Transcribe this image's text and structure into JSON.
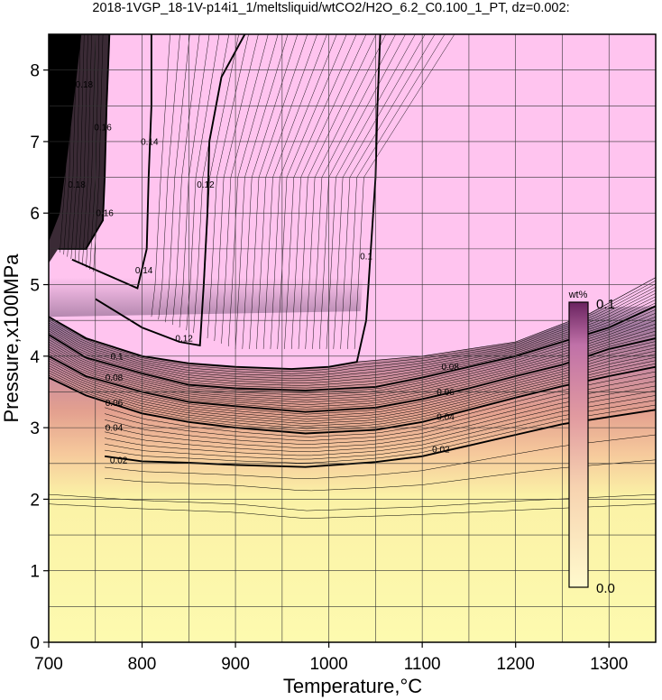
{
  "chart_data": {
    "type": "heatmap",
    "title": "2018-1VGP_18-1V-p14i1_1/meltsliquid/wtCO2/H2O_6.2_C0.100_1_PT, dz=0.002:",
    "xlabel": "Temperature,°C",
    "ylabel": "Pressure,x100MPa",
    "xlim": [
      700,
      1350
    ],
    "ylim": [
      0,
      8.5
    ],
    "x_ticks": [
      "700",
      "800",
      "900",
      "1000",
      "1100",
      "1200",
      "1300"
    ],
    "y_ticks": [
      "0",
      "1",
      "2",
      "3",
      "4",
      "5",
      "6",
      "7",
      "8"
    ],
    "grid": true,
    "colorbar": {
      "unit": "wt%",
      "min_label": "0.0",
      "max_label": "0.1",
      "placement": "right-inside",
      "colors": [
        "#fffacd",
        "#f4b9a4",
        "#cc7a8a",
        "#ffc4ef",
        "#000000"
      ]
    },
    "region_colors": {
      "upper": "#ffc4ef",
      "lower": "#fdfaaf",
      "left": "#000000"
    },
    "major_contours": [
      {
        "level": 0.02,
        "label": "0.02",
        "points": [
          [
            760,
            2.6
          ],
          [
            800,
            2.53
          ],
          [
            850,
            2.51
          ],
          [
            900,
            2.48
          ],
          [
            975,
            2.45
          ],
          [
            1050,
            2.52
          ],
          [
            1100,
            2.6
          ],
          [
            1150,
            2.75
          ],
          [
            1200,
            2.9
          ],
          [
            1250,
            3.05
          ],
          [
            1300,
            3.15
          ],
          [
            1350,
            3.25
          ]
        ]
      },
      {
        "level": 0.04,
        "label": "0.04",
        "points": [
          [
            700,
            3.7
          ],
          [
            740,
            3.45
          ],
          [
            800,
            3.2
          ],
          [
            850,
            3.08
          ],
          [
            900,
            3.0
          ],
          [
            975,
            2.92
          ],
          [
            1050,
            2.97
          ],
          [
            1100,
            3.08
          ],
          [
            1150,
            3.25
          ],
          [
            1200,
            3.42
          ],
          [
            1250,
            3.58
          ],
          [
            1300,
            3.72
          ],
          [
            1350,
            3.85
          ]
        ]
      },
      {
        "level": 0.06,
        "label": "0.06",
        "points": [
          [
            700,
            4.0
          ],
          [
            740,
            3.72
          ],
          [
            800,
            3.5
          ],
          [
            850,
            3.36
          ],
          [
            900,
            3.3
          ],
          [
            975,
            3.22
          ],
          [
            1050,
            3.28
          ],
          [
            1100,
            3.4
          ],
          [
            1150,
            3.55
          ],
          [
            1200,
            3.72
          ],
          [
            1250,
            3.88
          ],
          [
            1300,
            4.1
          ],
          [
            1350,
            4.25
          ]
        ]
      },
      {
        "level": 0.08,
        "label": "0.08",
        "points": [
          [
            700,
            4.3
          ],
          [
            740,
            3.98
          ],
          [
            800,
            3.76
          ],
          [
            850,
            3.6
          ],
          [
            900,
            3.55
          ],
          [
            975,
            3.52
          ],
          [
            1050,
            3.57
          ],
          [
            1100,
            3.7
          ],
          [
            1150,
            3.85
          ],
          [
            1200,
            4.0
          ],
          [
            1250,
            4.2
          ],
          [
            1300,
            4.4
          ],
          [
            1350,
            4.7
          ]
        ]
      },
      {
        "level": 0.1,
        "label": "0.1",
        "points": [
          [
            700,
            4.55
          ],
          [
            740,
            4.25
          ],
          [
            800,
            4.0
          ],
          [
            850,
            3.9
          ],
          [
            900,
            3.85
          ],
          [
            960,
            3.82
          ],
          [
            1000,
            3.85
          ],
          [
            1030,
            3.92
          ],
          [
            1040,
            4.5
          ],
          [
            1045,
            5.5
          ],
          [
            1050,
            6.5
          ],
          [
            1052,
            7.5
          ],
          [
            1055,
            8.5
          ]
        ]
      },
      {
        "level": 0.12,
        "label": "0.12",
        "points": [
          [
            750,
            4.8
          ],
          [
            800,
            4.4
          ],
          [
            840,
            4.2
          ],
          [
            862,
            4.15
          ],
          [
            866,
            5.0
          ],
          [
            870,
            6.0
          ],
          [
            872,
            7.0
          ],
          [
            885,
            7.9
          ],
          [
            910,
            8.5
          ]
        ]
      },
      {
        "level": 0.14,
        "label": "0.14",
        "points": [
          [
            725,
            5.35
          ],
          [
            760,
            5.15
          ],
          [
            795,
            4.95
          ],
          [
            805,
            5.5
          ],
          [
            807,
            6.5
          ],
          [
            810,
            7.5
          ],
          [
            810,
            8.5
          ]
        ]
      },
      {
        "level": 0.16,
        "label": "0.16",
        "points": [
          [
            710,
            5.5
          ],
          [
            740,
            5.5
          ],
          [
            758,
            5.9
          ],
          [
            760,
            6.5
          ],
          [
            762,
            7.5
          ],
          [
            765,
            8.5
          ]
        ]
      }
    ],
    "contour_labels": [
      {
        "text": "0.02",
        "x": 775,
        "y": 2.55
      },
      {
        "text": "0.04",
        "x": 770,
        "y": 3.0
      },
      {
        "text": "0.06",
        "x": 770,
        "y": 3.35
      },
      {
        "text": "0.08",
        "x": 770,
        "y": 3.7
      },
      {
        "text": "0.1",
        "x": 773,
        "y": 4.0
      },
      {
        "text": "0.12",
        "x": 845,
        "y": 4.25
      },
      {
        "text": "0.14",
        "x": 802,
        "y": 5.2
      },
      {
        "text": "0.16",
        "x": 760,
        "y": 6.0
      },
      {
        "text": "0.14",
        "x": 808,
        "y": 7.0
      },
      {
        "text": "0.12",
        "x": 868,
        "y": 6.4
      },
      {
        "text": "0.16",
        "x": 758,
        "y": 7.2
      },
      {
        "text": "0.1",
        "x": 1040,
        "y": 5.4
      },
      {
        "text": "0.08",
        "x": 1130,
        "y": 3.85
      },
      {
        "text": "0.06",
        "x": 1125,
        "y": 3.5
      },
      {
        "text": "0.04",
        "x": 1125,
        "y": 3.15
      },
      {
        "text": "0.02",
        "x": 1120,
        "y": 2.7
      },
      {
        "text": "0.18",
        "x": 730,
        "y": 6.4
      },
      {
        "text": "0.18",
        "x": 738,
        "y": 7.8
      }
    ]
  }
}
